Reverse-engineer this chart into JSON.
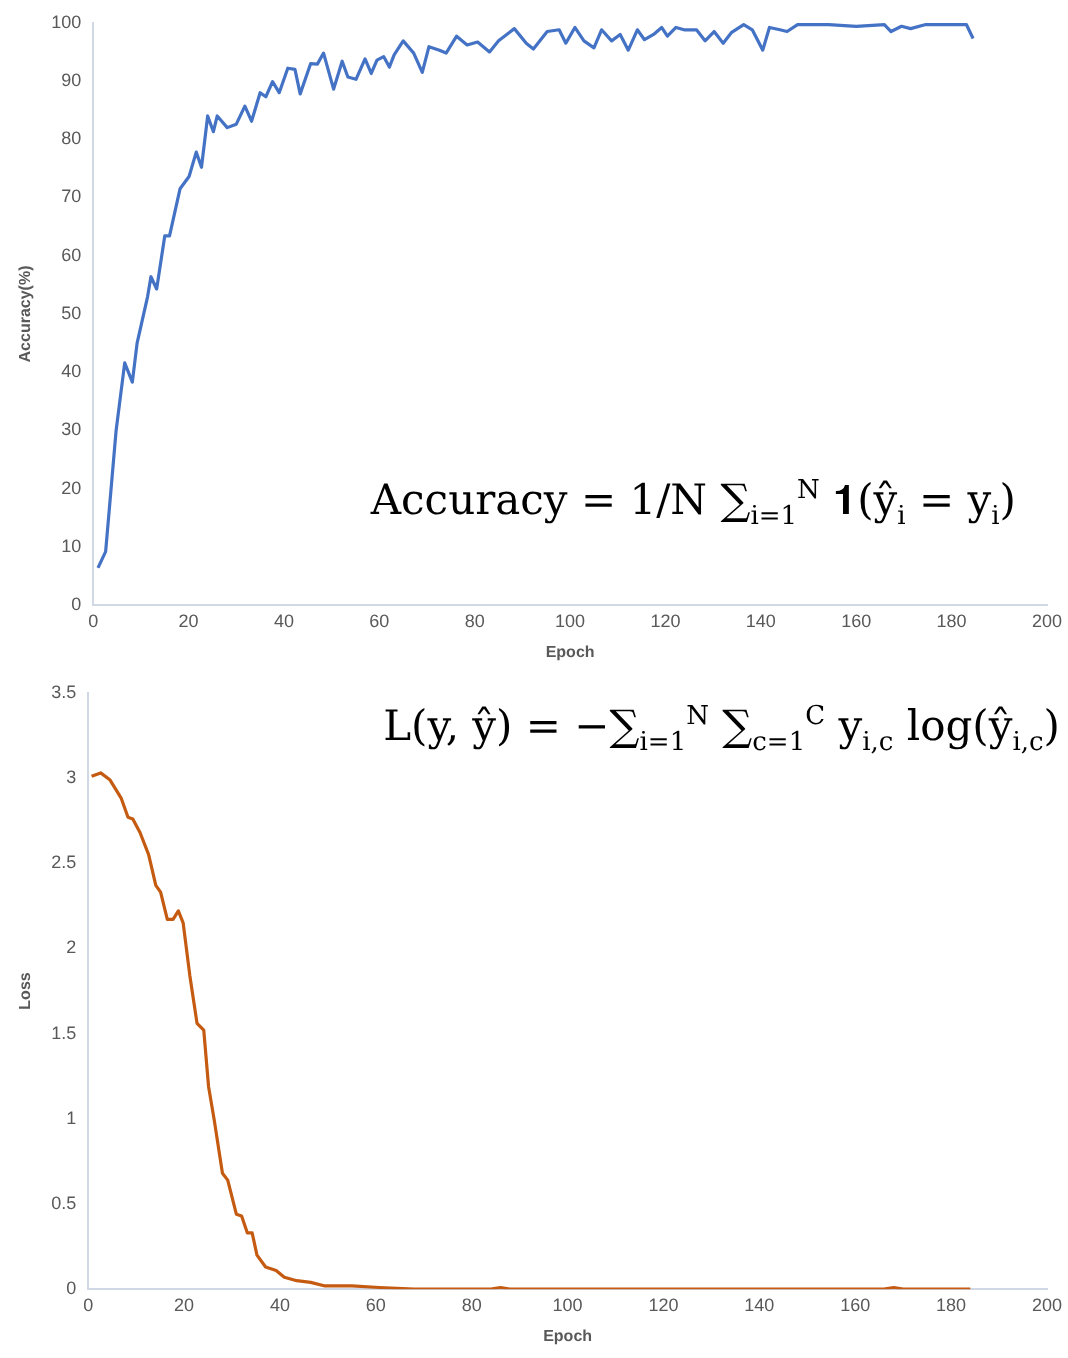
{
  "chart_data": [
    {
      "type": "line",
      "xlabel": "Epoch",
      "ylabel": "Accuracy(%)",
      "xlim": [
        0,
        200
      ],
      "xticks": [
        0,
        20,
        40,
        60,
        80,
        100,
        120,
        140,
        160,
        180,
        200
      ],
      "ylim": [
        0,
        100
      ],
      "yticks": [
        0,
        10,
        20,
        30,
        40,
        50,
        60,
        70,
        80,
        90,
        100
      ],
      "grid": false,
      "legend": false,
      "marker": "none",
      "line_style": "solid",
      "annotations": [
        "Accuracy = 1/N ∑$_{i=1}$$^{N}$ 𝟏(ŷ$_{i}$ = y$_{i}$)"
      ],
      "series": [
        {
          "color": "#4472c4",
          "x": [
            1,
            2.6,
            4.8,
            6.6,
            8.2,
            9.2,
            11.4,
            12.1,
            13.3,
            15,
            16,
            18.2,
            20.1,
            21.6,
            22.7,
            24,
            25.2,
            26,
            28.1,
            30,
            31.8,
            33.2,
            35,
            36.2,
            37.6,
            39,
            40.8,
            42.3,
            43.4,
            45.6,
            47,
            48.3,
            50.4,
            52.2,
            53.4,
            55.1,
            57,
            58.3,
            59.5,
            60.9,
            62.1,
            63.1,
            65,
            67.2,
            69,
            70.4,
            72.6,
            74,
            76.2,
            78.4,
            80.6,
            83.1,
            85,
            88.3,
            90.8,
            92.3,
            95.2,
            97.7,
            99.1,
            101,
            102.9,
            105,
            106.6,
            108.7,
            110.5,
            112.2,
            114.1,
            115.6,
            117.5,
            119.2,
            120.4,
            122.2,
            123.9,
            126.5,
            128.3,
            130.2,
            132.1,
            133.8,
            136.4,
            138.2,
            140.4,
            141.8,
            144,
            145.5,
            147.7,
            154.2,
            160,
            165.9,
            167.3,
            169.5,
            171.4,
            174.6,
            183.1,
            184.5
          ],
          "values": [
            6.4,
            9.2,
            30,
            41.6,
            38.3,
            45,
            53,
            56.4,
            54.3,
            63.4,
            63.4,
            71.5,
            73.6,
            77.8,
            75.2,
            84,
            81.3,
            84,
            82,
            82.6,
            85.7,
            83.1,
            88,
            87.3,
            89.9,
            88,
            92.2,
            92,
            87.8,
            93,
            92.9,
            94.8,
            88.6,
            93.4,
            90.7,
            90.3,
            93.8,
            91.3,
            93.6,
            94.2,
            92.4,
            94.5,
            96.9,
            94.8,
            91.5,
            95.9,
            95.3,
            94.8,
            97.7,
            96.2,
            96.7,
            95,
            96.9,
            99,
            96.5,
            95.5,
            98.5,
            98.8,
            96.5,
            99.2,
            96.9,
            95.7,
            98.8,
            96.9,
            98,
            95.3,
            98.8,
            97.1,
            98,
            99.2,
            97.7,
            99.2,
            98.8,
            98.8,
            96.9,
            98.5,
            96.5,
            98.3,
            99.7,
            98.8,
            95.3,
            99.2,
            98.8,
            98.5,
            99.7,
            99.7,
            99.4,
            99.7,
            98.5,
            99.4,
            99,
            99.7,
            99.7,
            97.3
          ]
        }
      ]
    },
    {
      "type": "line",
      "xlabel": "Epoch",
      "ylabel": "Loss",
      "xlim": [
        0,
        200
      ],
      "xticks": [
        0,
        20,
        40,
        60,
        80,
        100,
        120,
        140,
        160,
        180,
        200
      ],
      "ylim": [
        0,
        3.5
      ],
      "yticks": [
        0,
        0.5,
        1,
        1.5,
        2,
        2.5,
        3,
        3.5
      ],
      "grid": false,
      "legend": false,
      "marker": "none",
      "line_style": "solid",
      "annotations": [
        "L(y, ŷ) = −∑$_{i=1}$$^{N}$ ∑$_{c=1}$$^{C}$ y$_{i,c}$ log(ŷ$_{i,c}$)"
      ],
      "series": [
        {
          "color": "#c55a11",
          "x": [
            0.7,
            2.6,
            4.5,
            6.9,
            8.3,
            9.3,
            10.8,
            12.6,
            14.1,
            15.1,
            16.5,
            17.7,
            18.8,
            19.8,
            21.2,
            22.7,
            24.1,
            25.1,
            26.3,
            28,
            29.1,
            30.9,
            32,
            33.2,
            34.2,
            35.2,
            37,
            39.2,
            40.9,
            43.5,
            46.4,
            49.2,
            55,
            60.7,
            68,
            84,
            86,
            88,
            120,
            166,
            168,
            170,
            184
          ],
          "values": [
            3.01,
            3.03,
            2.99,
            2.88,
            2.77,
            2.76,
            2.68,
            2.55,
            2.37,
            2.33,
            2.17,
            2.17,
            2.22,
            2.15,
            1.84,
            1.56,
            1.52,
            1.19,
            0.99,
            0.68,
            0.64,
            0.44,
            0.43,
            0.33,
            0.33,
            0.2,
            0.13,
            0.11,
            0.07,
            0.05,
            0.04,
            0.02,
            0.02,
            0.01,
            0,
            0,
            0.01,
            0,
            0,
            0,
            0.01,
            0,
            0
          ]
        }
      ]
    }
  ]
}
